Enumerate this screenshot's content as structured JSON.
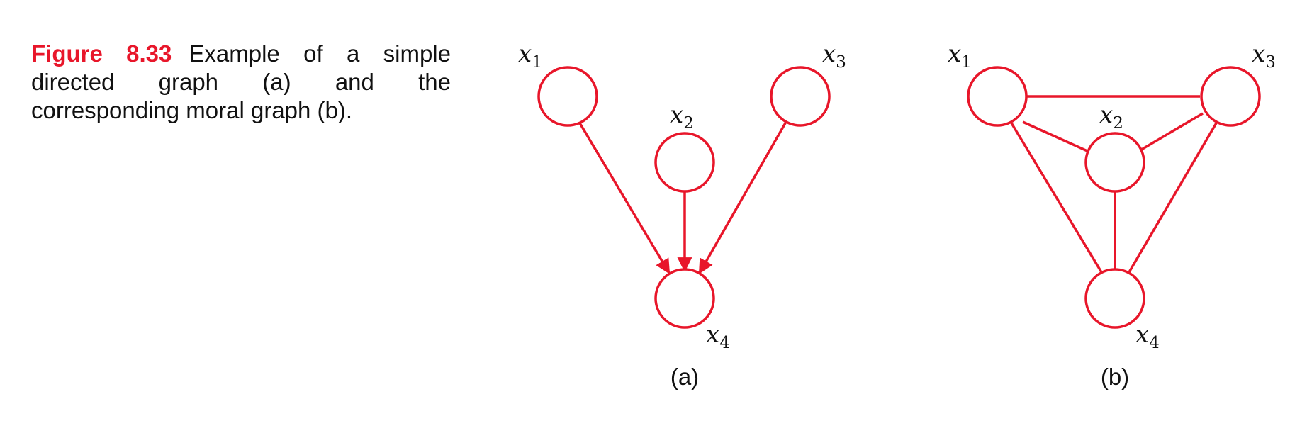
{
  "caption": {
    "figure_label": "Figure 8.33",
    "text": "Example of a simple directed graph (a) and the corresponding moral graph (b)."
  },
  "nodes": [
    {
      "var": "x",
      "sub": "1"
    },
    {
      "var": "x",
      "sub": "2"
    },
    {
      "var": "x",
      "sub": "3"
    },
    {
      "var": "x",
      "sub": "4"
    }
  ],
  "panels": {
    "a": {
      "label": "(a)",
      "edges_directed": [
        [
          "x1",
          "x4"
        ],
        [
          "x2",
          "x4"
        ],
        [
          "x3",
          "x4"
        ]
      ]
    },
    "b": {
      "label": "(b)",
      "edges_undirected": [
        [
          "x1",
          "x3"
        ],
        [
          "x1",
          "x2"
        ],
        [
          "x2",
          "x3"
        ],
        [
          "x1",
          "x4"
        ],
        [
          "x2",
          "x4"
        ],
        [
          "x3",
          "x4"
        ]
      ]
    }
  },
  "colors": {
    "accent": "#e8162a",
    "text": "#111111"
  }
}
